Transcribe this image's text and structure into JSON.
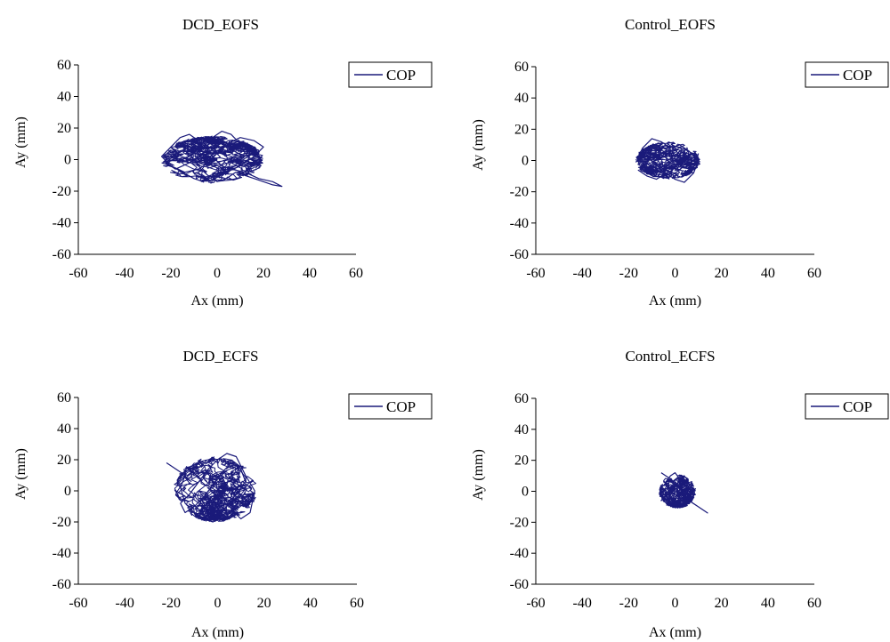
{
  "colors": {
    "series": "#1a1a7a",
    "axis": "#000000",
    "background": "#ffffff"
  },
  "chart_data": [
    {
      "type": "line",
      "title": "DCD_EOFS",
      "xlabel": "Ax (mm)",
      "ylabel": "Ay (mm)",
      "xlim": [
        -60,
        60
      ],
      "ylim": [
        -60,
        60
      ],
      "xticks": [
        "-60",
        "-40",
        "-20",
        "0",
        "20",
        "40",
        "60"
      ],
      "yticks": [
        "60",
        "40",
        "20",
        "0",
        "-20",
        "-40",
        "-60"
      ],
      "grid": false,
      "legend_position": "top-right",
      "series": [
        {
          "name": "COP",
          "color": "#1a1a7a",
          "cloud": {
            "center": [
              -2,
              0
            ],
            "spread": [
              22,
              15
            ],
            "seed": 11
          },
          "x": [
            -24,
            -20,
            -15,
            -10,
            -6,
            -3,
            0,
            4,
            8,
            12,
            16,
            20,
            24,
            28,
            24,
            18,
            12,
            6,
            2,
            -2,
            -5,
            -8,
            -12,
            -16,
            -20,
            -24,
            -20,
            -14,
            -8,
            -4,
            0,
            4,
            10,
            16,
            20,
            16,
            10,
            4,
            -1,
            -4,
            -7,
            -10,
            -14,
            -18,
            -22,
            -18,
            -12,
            -6,
            -2,
            2,
            6,
            10,
            14
          ],
          "y": [
            -2,
            -4,
            -8,
            -12,
            -14,
            -10,
            -14,
            -12,
            -8,
            -10,
            -12,
            -14,
            -16,
            -17,
            -14,
            -12,
            -8,
            -6,
            -4,
            2,
            8,
            12,
            16,
            14,
            8,
            2,
            -4,
            -8,
            -6,
            -2,
            4,
            10,
            14,
            12,
            8,
            2,
            -4,
            -8,
            -12,
            -10,
            -6,
            0,
            6,
            4,
            -2,
            -6,
            -2,
            4,
            14,
            18,
            16,
            10,
            6
          ]
        }
      ]
    },
    {
      "type": "line",
      "title": "Control_EOFS",
      "xlabel": "Ax (mm)",
      "ylabel": "Ay (mm)",
      "xlim": [
        -60,
        60
      ],
      "ylim": [
        -60,
        60
      ],
      "xticks": [
        "-60",
        "-40",
        "-20",
        "0",
        "20",
        "40",
        "60"
      ],
      "yticks": [
        "60",
        "40",
        "20",
        "0",
        "-20",
        "-40",
        "-60"
      ],
      "grid": false,
      "legend_position": "top-right",
      "series": [
        {
          "name": "COP",
          "color": "#1a1a7a",
          "cloud": {
            "center": [
              -3,
              0
            ],
            "spread": [
              14,
              12
            ],
            "seed": 23
          },
          "x": [
            -16,
            -12,
            -8,
            -4,
            0,
            4,
            8,
            10,
            6,
            2,
            -2,
            -6,
            -10,
            -14,
            -16,
            -12,
            -8,
            -4,
            0,
            4,
            6,
            2,
            -2,
            -6,
            -10,
            -8,
            -4,
            0
          ],
          "y": [
            -6,
            -10,
            -12,
            -8,
            -12,
            -14,
            -8,
            0,
            6,
            10,
            8,
            12,
            14,
            8,
            2,
            -4,
            -8,
            -4,
            2,
            6,
            0,
            -6,
            -10,
            -6,
            0,
            6,
            10,
            4
          ]
        }
      ]
    },
    {
      "type": "line",
      "title": "DCD_ECFS",
      "xlabel": "Ax (mm)",
      "ylabel": "Ay (mm)",
      "xlim": [
        -60,
        60
      ],
      "ylim": [
        -60,
        60
      ],
      "xticks": [
        "-60",
        "-40",
        "-20",
        "0",
        "20",
        "40",
        "60"
      ],
      "yticks": [
        "60",
        "40",
        "20",
        "0",
        "-20",
        "-40",
        "-60"
      ],
      "grid": false,
      "legend_position": "top-right",
      "series": [
        {
          "name": "COP",
          "color": "#1a1a7a",
          "cloud": {
            "center": [
              -1,
              1
            ],
            "spread": [
              18,
              21
            ],
            "seed": 37
          },
          "x": [
            -22,
            -18,
            -14,
            -16,
            -14,
            -10,
            -6,
            -2,
            2,
            6,
            10,
            14,
            16,
            12,
            8,
            4,
            0,
            -4,
            -8,
            -12,
            -16,
            -14,
            -10,
            -6,
            -2,
            2,
            6,
            10,
            12,
            8,
            4,
            0,
            -4,
            -8
          ],
          "y": [
            18,
            14,
            10,
            2,
            -8,
            -14,
            -18,
            -20,
            -16,
            -12,
            -18,
            -14,
            0,
            10,
            22,
            24,
            20,
            14,
            6,
            -2,
            -8,
            -14,
            -10,
            -4,
            4,
            12,
            18,
            14,
            6,
            -2,
            -10,
            -18,
            -14,
            -6
          ]
        }
      ]
    },
    {
      "type": "line",
      "title": "Control_ECFS",
      "xlabel": "Ax (mm)",
      "ylabel": "Ay (mm)",
      "xlim": [
        -60,
        60
      ],
      "ylim": [
        -60,
        60
      ],
      "xticks": [
        "-60",
        "-40",
        "-20",
        "0",
        "20",
        "40",
        "60"
      ],
      "yticks": [
        "60",
        "40",
        "20",
        "0",
        "-20",
        "-40",
        "-60"
      ],
      "grid": false,
      "legend_position": "top-right",
      "series": [
        {
          "name": "COP",
          "color": "#1a1a7a",
          "cloud": {
            "center": [
              1,
              0
            ],
            "spread": [
              8,
              11
            ],
            "seed": 53
          },
          "x": [
            -6,
            -4,
            -2,
            0,
            -2,
            -4,
            -6,
            -4,
            -2,
            0,
            2,
            4,
            6,
            8,
            10,
            12,
            14,
            10,
            6,
            2,
            -2,
            -4,
            -2,
            0,
            2
          ],
          "y": [
            12,
            10,
            8,
            4,
            0,
            -4,
            -6,
            -2,
            2,
            6,
            2,
            -2,
            -6,
            -8,
            -10,
            -12,
            -14,
            -10,
            -6,
            -4,
            0,
            6,
            10,
            12,
            8
          ]
        }
      ]
    }
  ]
}
